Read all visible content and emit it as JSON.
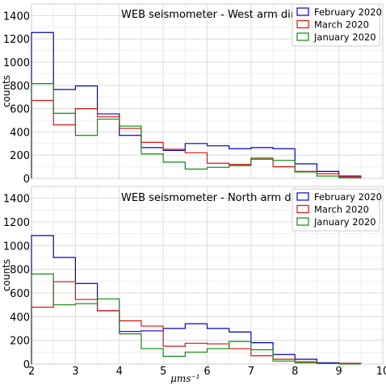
{
  "chart_data": [
    {
      "type": "histogram",
      "title": "WEB seismometer - West arm direction",
      "ylabel": "counts",
      "xlabel": "",
      "xlim": [
        2,
        10
      ],
      "ylim": [
        0,
        1500
      ],
      "yticks": [
        0,
        200,
        400,
        600,
        800,
        1000,
        1200,
        1400
      ],
      "bin_edges": [
        2,
        2.5,
        3,
        3.5,
        4,
        4.5,
        5,
        5.5,
        6,
        6.5,
        7,
        7.5,
        8,
        8.5,
        9,
        9.5
      ],
      "grid": true,
      "legend_position": "top-right",
      "series": [
        {
          "name": "February 2020",
          "color": "#0000cc",
          "values": [
            1255,
            765,
            795,
            555,
            370,
            265,
            240,
            300,
            280,
            255,
            265,
            255,
            125,
            60,
            20
          ]
        },
        {
          "name": "March 2020",
          "color": "#dd1111",
          "values": [
            670,
            460,
            600,
            530,
            430,
            310,
            250,
            220,
            130,
            120,
            165,
            100,
            60,
            40,
            15
          ]
        },
        {
          "name": "January 2020",
          "color": "#118811",
          "values": [
            815,
            560,
            370,
            510,
            450,
            210,
            140,
            80,
            95,
            110,
            175,
            155,
            55,
            20,
            5
          ]
        }
      ]
    },
    {
      "type": "histogram",
      "title": "WEB seismometer - North arm direction",
      "ylabel": "counts",
      "xlabel": "μms⁻¹",
      "xlim": [
        2,
        10
      ],
      "ylim": [
        0,
        1500
      ],
      "yticks": [
        0,
        200,
        400,
        600,
        800,
        1000,
        1200,
        1400
      ],
      "xticks": [
        2,
        3,
        4,
        5,
        6,
        7,
        8,
        9,
        10
      ],
      "bin_edges": [
        2,
        2.5,
        3,
        3.5,
        4,
        4.5,
        5,
        5.5,
        6,
        6.5,
        7,
        7.5,
        8,
        8.5,
        9,
        9.5
      ],
      "grid": true,
      "legend_position": "top-right",
      "series": [
        {
          "name": "February 2020",
          "color": "#0000cc",
          "values": [
            1085,
            900,
            680,
            450,
            275,
            280,
            300,
            340,
            300,
            270,
            180,
            80,
            40,
            10,
            5
          ]
        },
        {
          "name": "March 2020",
          "color": "#dd1111",
          "values": [
            480,
            695,
            545,
            450,
            365,
            320,
            150,
            175,
            170,
            130,
            70,
            40,
            20,
            5,
            5
          ]
        },
        {
          "name": "January 2020",
          "color": "#118811",
          "values": [
            760,
            500,
            510,
            550,
            255,
            130,
            65,
            100,
            130,
            190,
            120,
            25,
            10,
            5,
            0
          ]
        }
      ]
    }
  ]
}
